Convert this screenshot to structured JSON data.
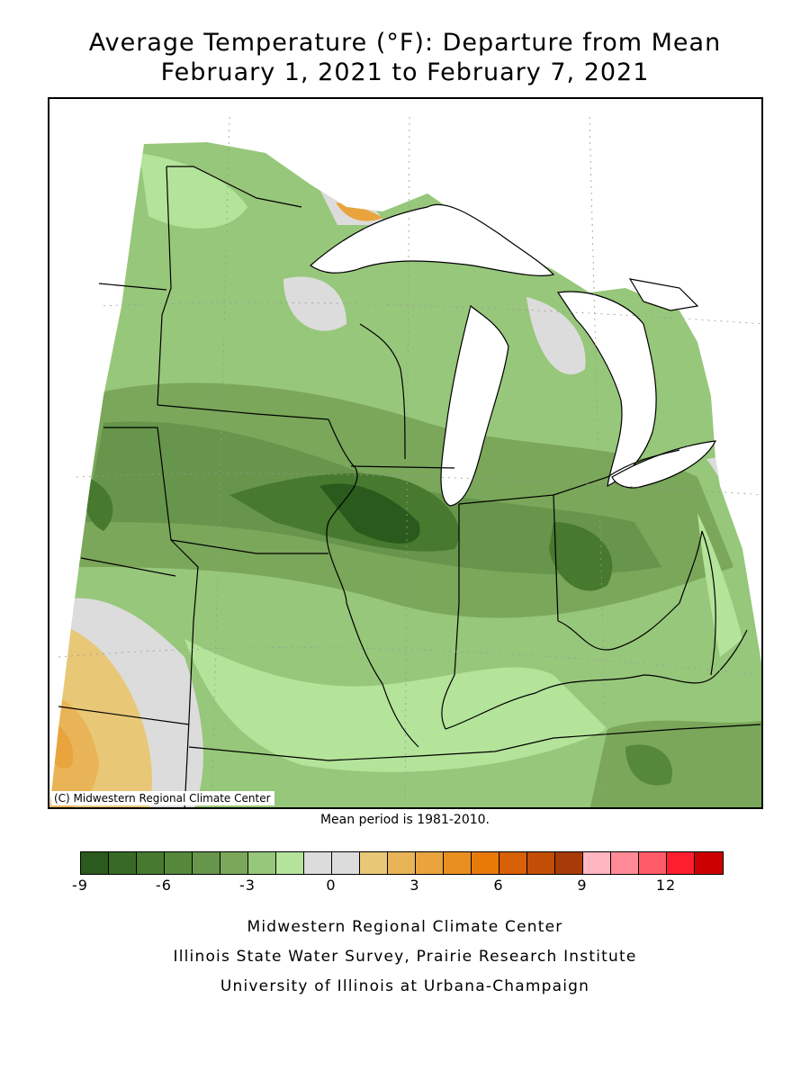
{
  "title_line1": "Average Temperature (°F): Departure from Mean",
  "title_line2": "February 1, 2021 to February 7, 2021",
  "copyright": "(C) Midwestern Regional Climate Center",
  "mean_period": "Mean period is 1981-2010.",
  "legend": {
    "colors": [
      "#2a5a1c",
      "#376b25",
      "#47792f",
      "#56883b",
      "#67954b",
      "#7aa75a",
      "#97c77a",
      "#b3e49a",
      "#dcdcdc",
      "#dcdcdc",
      "#e8c877",
      "#e8b457",
      "#e9a43d",
      "#e98f1f",
      "#e87a08",
      "#d86006",
      "#c24e06",
      "#a73b08",
      "#ffb6c1",
      "#ff8a95",
      "#ff5a68",
      "#ff1e2d",
      "#cc0000"
    ],
    "ticks": [
      {
        "label": "-9",
        "value": -9
      },
      {
        "label": "-6",
        "value": -6
      },
      {
        "label": "-3",
        "value": -3
      },
      {
        "label": "0",
        "value": 0
      },
      {
        "label": "3",
        "value": 3
      },
      {
        "label": "6",
        "value": 6
      },
      {
        "label": "9",
        "value": 9
      },
      {
        "label": "12",
        "value": 12
      }
    ]
  },
  "footer_line1": "Midwestern Regional Climate Center",
  "footer_line2": "Illinois State Water Survey, Prairie Research Institute",
  "footer_line3": "University of Illinois at Urbana-Champaign"
}
